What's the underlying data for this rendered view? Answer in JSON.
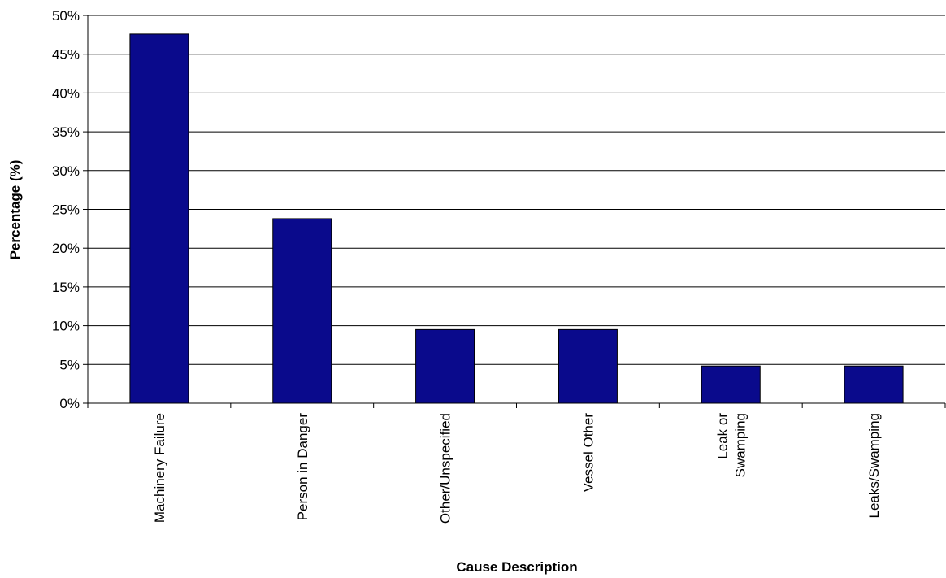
{
  "chart_data": {
    "type": "bar",
    "title": "",
    "xlabel": "Cause Description",
    "ylabel": "Percentage (%)",
    "ylim": [
      0,
      50
    ],
    "ytick_step": 5,
    "ytick_labels": [
      "0%",
      "5%",
      "10%",
      "15%",
      "20%",
      "25%",
      "30%",
      "35%",
      "40%",
      "45%",
      "50%"
    ],
    "grid": true,
    "legend": "none",
    "categories": [
      [
        "Machinery Failure"
      ],
      [
        "Person in Danger"
      ],
      [
        "Other/Unspecified"
      ],
      [
        "Vessel Other"
      ],
      [
        "Leak or",
        "Swamping"
      ],
      [
        "Leaks/Swamping"
      ]
    ],
    "values": [
      47.6,
      23.8,
      9.5,
      9.5,
      4.8,
      4.8
    ],
    "bar_color": "#0a0a8c",
    "bar_edge_color": "#000000"
  }
}
